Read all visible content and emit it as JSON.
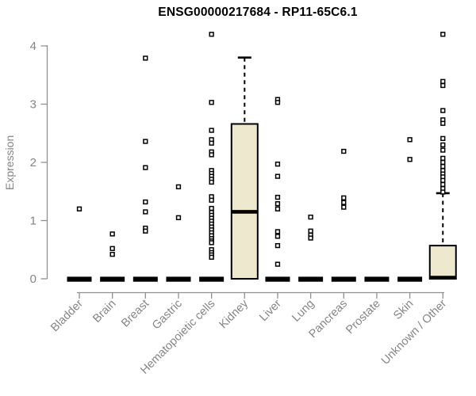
{
  "chart_data": {
    "type": "boxplot",
    "title": "ENSG00000217684 - RP11-65C6.1",
    "ylabel": "Expression",
    "xlabel": "",
    "ylim": [
      0,
      4.3
    ],
    "yticks": [
      0,
      1,
      2,
      3,
      4
    ],
    "grid": false,
    "legend": "none",
    "marker": "open-square",
    "whisker_style": "dashed",
    "categories": [
      "Bladder",
      "Brain",
      "Breast",
      "Gastric",
      "Hematopoietic cells",
      "Kidney",
      "Liver",
      "Lung",
      "Pancreas",
      "Prostate",
      "Skin",
      "Unknown / Other"
    ],
    "boxes": [
      {
        "category": "Bladder",
        "low": 0,
        "q1": 0,
        "median": 0,
        "q3": 0,
        "high": 0,
        "outliers": [
          1.2
        ]
      },
      {
        "category": "Brain",
        "low": 0,
        "q1": 0,
        "median": 0,
        "q3": 0,
        "high": 0,
        "outliers": [
          0.77,
          0.52,
          0.42
        ]
      },
      {
        "category": "Breast",
        "low": 0,
        "q1": 0,
        "median": 0,
        "q3": 0,
        "high": 0,
        "outliers": [
          3.79,
          2.36,
          1.91,
          1.32,
          1.15,
          0.87,
          0.82
        ]
      },
      {
        "category": "Gastric",
        "low": 0,
        "q1": 0,
        "median": 0,
        "q3": 0,
        "high": 0,
        "outliers": [
          1.58,
          1.05
        ]
      },
      {
        "category": "Hematopoietic cells",
        "low": 0,
        "q1": 0,
        "median": 0,
        "q3": 0,
        "high": 0,
        "outliers": [
          4.2,
          3.03,
          2.55,
          2.39,
          2.33,
          2.18,
          2.13,
          1.86,
          1.81,
          1.76,
          1.71,
          1.66,
          1.41,
          1.35,
          1.21,
          1.14,
          1.09,
          1.04,
          0.99,
          0.94,
          0.89,
          0.84,
          0.79,
          0.74,
          0.69,
          0.65,
          0.62,
          0.5,
          0.45,
          0.41,
          0.37
        ]
      },
      {
        "category": "Kidney",
        "low": 0,
        "q1": 0,
        "median": 1.15,
        "q3": 2.66,
        "high": 3.8,
        "outliers": []
      },
      {
        "category": "Liver",
        "low": 0,
        "q1": 0,
        "median": 0,
        "q3": 0,
        "high": 0,
        "outliers": [
          3.08,
          3.03,
          1.97,
          1.76,
          1.4,
          1.29,
          1.2,
          0.81,
          0.73,
          0.57,
          0.25
        ]
      },
      {
        "category": "Lung",
        "low": 0,
        "q1": 0,
        "median": 0,
        "q3": 0,
        "high": 0,
        "outliers": [
          1.06,
          0.82,
          0.75,
          0.7
        ]
      },
      {
        "category": "Pancreas",
        "low": 0,
        "q1": 0,
        "median": 0,
        "q3": 0,
        "high": 0,
        "outliers": [
          2.19,
          1.39,
          1.31,
          1.23
        ]
      },
      {
        "category": "Prostate",
        "low": 0,
        "q1": 0,
        "median": 0,
        "q3": 0,
        "high": 0,
        "outliers": []
      },
      {
        "category": "Skin",
        "low": 0,
        "q1": 0,
        "median": 0,
        "q3": 0,
        "high": 0,
        "outliers": [
          2.39,
          2.05
        ]
      },
      {
        "category": "Unknown / Other",
        "low": 0,
        "q1": 0,
        "median": 0.02,
        "q3": 0.57,
        "high": 1.47,
        "outliers": [
          4.2,
          3.39,
          3.32,
          2.89,
          2.73,
          2.67,
          2.41,
          2.3,
          2.21,
          2.07,
          2.0,
          1.93,
          1.86,
          1.8,
          1.75,
          1.69,
          1.62,
          1.55,
          1.49
        ]
      }
    ],
    "colors": {
      "box_fill": "#EDE8CE",
      "box_stroke": "#000000",
      "median": "#000000",
      "outlier": "#000000",
      "axis": "#919191",
      "label": "#858585",
      "title": "#000000",
      "background": "#FFFFFF"
    }
  }
}
